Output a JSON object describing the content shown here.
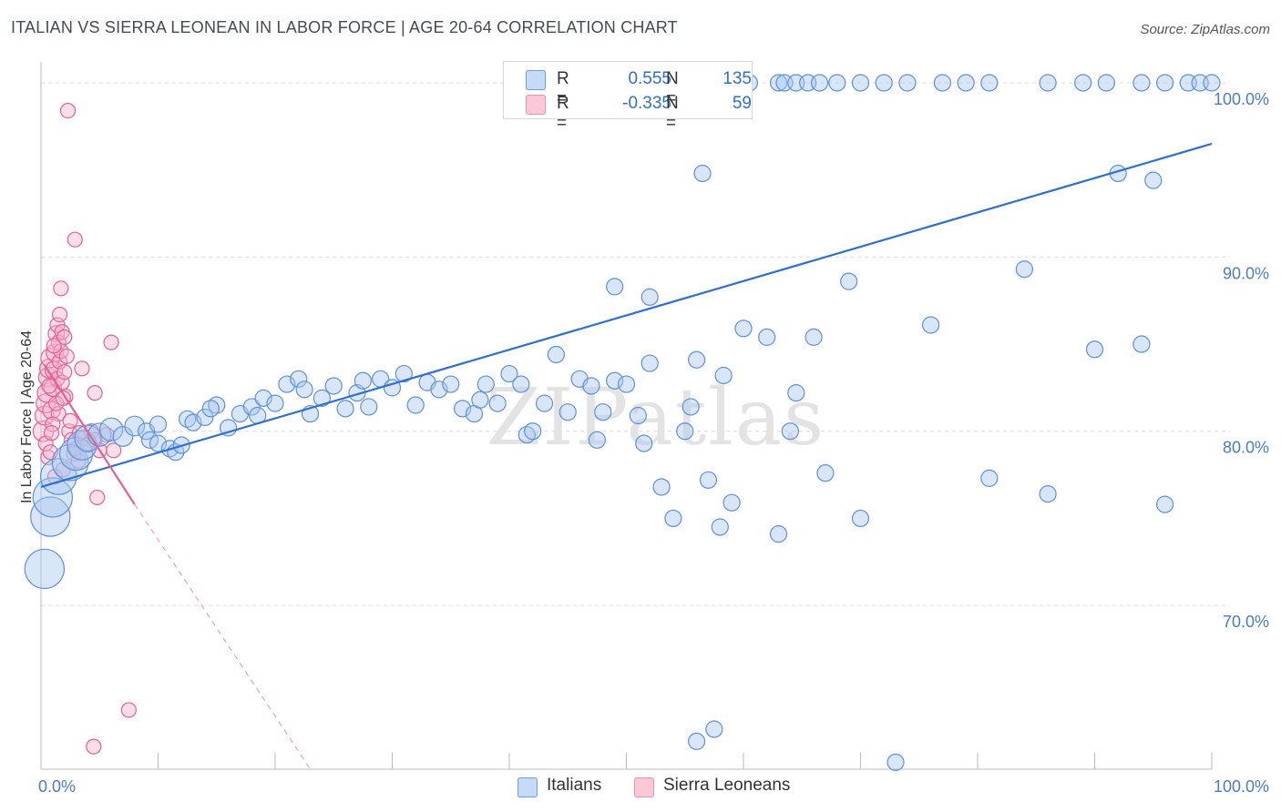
{
  "title": "ITALIAN VS SIERRA LEONEAN IN LABOR FORCE | AGE 20-64 CORRELATION CHART",
  "source": "Source: ZipAtlas.com",
  "watermark": "ZIPatlas",
  "colors": {
    "blue": "#2f6fd0",
    "blue_fill": "#a9c8f0",
    "pink": "#e86090",
    "pink_fill": "#f4b6cb",
    "grid": "#dcdcdc",
    "axis_text": "#4a7cc7"
  },
  "legend": {
    "rows": [
      {
        "r_label": "R =",
        "r_value": "0.555",
        "n_label": "N =",
        "n_value": "135"
      },
      {
        "r_label": "R =",
        "r_value": "-0.335",
        "n_label": "N =",
        "n_value": "59"
      }
    ]
  },
  "bottom_legend": {
    "italians": "Italians",
    "sierra": "Sierra Leoneans"
  },
  "chart_data": {
    "type": "scatter",
    "title": "ITALIAN VS SIERRA LEONEAN IN LABOR FORCE | AGE 20-64 CORRELATION CHART",
    "xlabel": "",
    "ylabel": "In Labor Force | Age 20-64",
    "xlim": [
      0,
      100
    ],
    "ylim": [
      60.6,
      101.2
    ],
    "x_tick_labels": [
      "0.0%",
      "100.0%"
    ],
    "y_ticks": [
      70,
      80,
      90,
      100
    ],
    "y_tick_labels": [
      "70.0%",
      "80.0%",
      "90.0%",
      "100.0%"
    ],
    "series": [
      {
        "name": "Italians",
        "color": "#2f6fd0",
        "r": 0.555,
        "n": 135,
        "trend": {
          "x": [
            0,
            100
          ],
          "y": [
            76.8,
            96.5
          ]
        },
        "points": [
          [
            0.3,
            72.1,
            2.4
          ],
          [
            0.8,
            75.1,
            2.4
          ],
          [
            1.0,
            76.2,
            2.4
          ],
          [
            1.5,
            77.4,
            2.2
          ],
          [
            2.5,
            78.2,
            2.2
          ],
          [
            3.0,
            78.7,
            2.0
          ],
          [
            3.5,
            79.2,
            1.8
          ],
          [
            4.0,
            79.6,
            1.6
          ],
          [
            5.0,
            79.8,
            1.4
          ],
          [
            6.0,
            80.1,
            1.4
          ],
          [
            7.0,
            79.7,
            1.2
          ],
          [
            8.0,
            80.3,
            1.2
          ],
          [
            9.0,
            80.0,
            1.0
          ],
          [
            10.0,
            80.4,
            1.0
          ],
          [
            9.3,
            79.5,
            1.0
          ],
          [
            10.0,
            79.3,
            1.0
          ],
          [
            11.0,
            79.0,
            1.0
          ],
          [
            11.5,
            78.8,
            1.0
          ],
          [
            12.0,
            79.2,
            1.0
          ],
          [
            12.5,
            80.7,
            1.0
          ],
          [
            13.0,
            80.5,
            1.0
          ],
          [
            14.0,
            80.8,
            1.0
          ],
          [
            15.0,
            81.5,
            1.0
          ],
          [
            14.5,
            81.3,
            1.0
          ],
          [
            16.0,
            80.2,
            1.0
          ],
          [
            17.0,
            81.0,
            1.0
          ],
          [
            18.0,
            81.4,
            1.0
          ],
          [
            18.5,
            80.9,
            1.0
          ],
          [
            19.0,
            81.9,
            1.0
          ],
          [
            20.0,
            81.6,
            1.0
          ],
          [
            21.0,
            82.7,
            1.0
          ],
          [
            22.0,
            83.0,
            1.0
          ],
          [
            22.5,
            82.4,
            1.0
          ],
          [
            23.0,
            81.0,
            1.0
          ],
          [
            24.0,
            81.9,
            1.0
          ],
          [
            25.0,
            82.6,
            1.0
          ],
          [
            26.0,
            81.3,
            1.0
          ],
          [
            27.0,
            82.2,
            1.0
          ],
          [
            27.5,
            82.9,
            1.0
          ],
          [
            28.0,
            81.4,
            1.0
          ],
          [
            29.0,
            83.0,
            1.0
          ],
          [
            30.0,
            82.5,
            1.0
          ],
          [
            31.0,
            83.3,
            1.0
          ],
          [
            32.0,
            81.5,
            1.0
          ],
          [
            33.0,
            82.8,
            1.0
          ],
          [
            34.0,
            82.4,
            1.0
          ],
          [
            35.0,
            82.7,
            1.0
          ],
          [
            36.0,
            81.3,
            1.0
          ],
          [
            37.0,
            81.0,
            1.0
          ],
          [
            37.5,
            81.8,
            1.0
          ],
          [
            38.0,
            82.7,
            1.0
          ],
          [
            39.0,
            81.6,
            1.0
          ],
          [
            40.0,
            83.3,
            1.0
          ],
          [
            41.0,
            82.7,
            1.0
          ],
          [
            41.5,
            79.8,
            1.0
          ],
          [
            42.0,
            80.0,
            1.0
          ],
          [
            43.0,
            81.6,
            1.0
          ],
          [
            44.0,
            84.4,
            1.0
          ],
          [
            45.0,
            81.1,
            1.0
          ],
          [
            46.0,
            83.0,
            1.0
          ],
          [
            47.0,
            82.6,
            1.0
          ],
          [
            47.5,
            79.5,
            1.0
          ],
          [
            48.0,
            81.1,
            1.0
          ],
          [
            49.0,
            82.9,
            1.0
          ],
          [
            50.0,
            82.7,
            1.0
          ],
          [
            51.0,
            80.9,
            1.0
          ],
          [
            51.5,
            79.3,
            1.0
          ],
          [
            52.0,
            83.9,
            1.0
          ],
          [
            53.0,
            76.8,
            1.0
          ],
          [
            54.0,
            75.0,
            1.0
          ],
          [
            55.0,
            80.0,
            1.0
          ],
          [
            55.5,
            81.4,
            1.0
          ],
          [
            56.0,
            84.1,
            1.0
          ],
          [
            57.0,
            77.2,
            1.0
          ],
          [
            58.0,
            74.5,
            1.0
          ],
          [
            58.3,
            83.2,
            1.0
          ],
          [
            59.0,
            75.9,
            1.0
          ],
          [
            60.0,
            85.9,
            1.0
          ],
          [
            62.0,
            85.4,
            1.0
          ],
          [
            63.0,
            74.1,
            1.0
          ],
          [
            64.0,
            80.0,
            1.0
          ],
          [
            64.5,
            82.2,
            1.0
          ],
          [
            66.0,
            85.4,
            1.0
          ],
          [
            67.0,
            77.6,
            1.0
          ],
          [
            70.0,
            75.0,
            1.0
          ],
          [
            49.0,
            88.3,
            1.0
          ],
          [
            52.0,
            87.7,
            1.0
          ],
          [
            56.0,
            62.2,
            1.0
          ],
          [
            57.5,
            62.9,
            1.0
          ],
          [
            69.0,
            88.6,
            1.0
          ],
          [
            73.0,
            61.0,
            1.0
          ],
          [
            76.0,
            86.1,
            1.0
          ],
          [
            81.0,
            77.3,
            1.0
          ],
          [
            84.0,
            89.3,
            1.0
          ],
          [
            86.0,
            76.4,
            1.0
          ],
          [
            90.0,
            84.7,
            1.0
          ],
          [
            94.0,
            85.0,
            1.0
          ],
          [
            96.0,
            75.8,
            1.0
          ],
          [
            56.5,
            94.8,
            1.0
          ],
          [
            92.0,
            94.8,
            1.0
          ],
          [
            95.0,
            94.4,
            1.0
          ],
          [
            48.0,
            100.0,
            1.0
          ],
          [
            50.0,
            100.0,
            1.0
          ],
          [
            53.0,
            100.0,
            1.0
          ],
          [
            55.0,
            100.0,
            1.0
          ],
          [
            57.0,
            100.0,
            1.0
          ],
          [
            58.0,
            100.0,
            1.0
          ],
          [
            59.0,
            100.0,
            1.0
          ],
          [
            60.5,
            100.0,
            1.0
          ],
          [
            63.0,
            100.0,
            1.0
          ],
          [
            63.5,
            100.0,
            1.0
          ],
          [
            64.5,
            100.0,
            1.0
          ],
          [
            65.5,
            100.0,
            1.0
          ],
          [
            66.5,
            100.0,
            1.0
          ],
          [
            68.0,
            100.0,
            1.0
          ],
          [
            70.0,
            100.0,
            1.0
          ],
          [
            72.0,
            100.0,
            1.0
          ],
          [
            74.0,
            100.0,
            1.0
          ],
          [
            77.0,
            100.0,
            1.0
          ],
          [
            79.0,
            100.0,
            1.0
          ],
          [
            81.0,
            100.0,
            1.0
          ],
          [
            86.0,
            100.0,
            1.0
          ],
          [
            89.0,
            100.0,
            1.0
          ],
          [
            91.0,
            100.0,
            1.0
          ],
          [
            94.0,
            100.0,
            1.0
          ],
          [
            96.0,
            100.0,
            1.0
          ],
          [
            98.0,
            100.0,
            1.0
          ],
          [
            99.0,
            100.0,
            1.0
          ],
          [
            100.0,
            100.0,
            1.0
          ]
        ]
      },
      {
        "name": "Sierra Leoneans",
        "color": "#e86090",
        "r": -0.335,
        "n": 59,
        "trend": {
          "x": [
            0.3,
            8.0
          ],
          "y": [
            83.8,
            75.8
          ]
        },
        "trend_extrapolated": {
          "x": [
            8.0,
            23.0
          ],
          "y": [
            75.8,
            60.6
          ]
        },
        "points": [
          [
            0.2,
            80.0,
            1.4
          ],
          [
            0.3,
            80.9,
            1.3
          ],
          [
            0.4,
            81.6,
            1.3
          ],
          [
            0.5,
            82.2,
            1.3
          ],
          [
            0.6,
            83.1,
            1.3
          ],
          [
            0.7,
            83.6,
            1.3
          ],
          [
            0.8,
            84.2,
            1.3
          ],
          [
            0.9,
            81.2,
            1.2
          ],
          [
            1.0,
            82.5,
            1.2
          ],
          [
            1.1,
            83.5,
            1.2
          ],
          [
            1.2,
            84.5,
            1.2
          ],
          [
            1.3,
            85.6,
            1.1
          ],
          [
            1.4,
            86.1,
            1.0
          ],
          [
            1.5,
            85.1,
            1.0
          ],
          [
            1.6,
            84.0,
            1.0
          ],
          [
            1.7,
            84.6,
            1.0
          ],
          [
            1.8,
            85.7,
            1.0
          ],
          [
            1.6,
            86.7,
            1.0
          ],
          [
            1.7,
            88.2,
            1.0
          ],
          [
            1.4,
            83.0,
            1.0
          ],
          [
            1.8,
            82.8,
            1.0
          ],
          [
            2.0,
            83.4,
            1.0
          ],
          [
            2.2,
            84.3,
            1.0
          ],
          [
            2.0,
            85.4,
            1.0
          ],
          [
            1.5,
            81.0,
            1.0
          ],
          [
            2.4,
            80.0,
            1.0
          ],
          [
            2.6,
            79.5,
            1.0
          ],
          [
            2.8,
            78.7,
            1.0
          ],
          [
            3.0,
            79.0,
            1.0
          ],
          [
            3.2,
            78.3,
            1.0
          ],
          [
            3.5,
            83.6,
            1.0
          ],
          [
            3.7,
            79.6,
            1.0
          ],
          [
            4.0,
            79.2,
            1.0
          ],
          [
            4.3,
            80.0,
            1.0
          ],
          [
            4.6,
            79.5,
            1.0
          ],
          [
            4.6,
            82.2,
            1.0
          ],
          [
            4.8,
            76.2,
            1.0
          ],
          [
            5.0,
            78.9,
            1.0
          ],
          [
            5.6,
            79.8,
            1.0
          ],
          [
            6.2,
            78.9,
            1.0
          ],
          [
            6.0,
            85.1,
            1.0
          ],
          [
            1.0,
            80.4,
            1.0
          ],
          [
            0.6,
            78.5,
            1.0
          ],
          [
            0.4,
            79.3,
            1.0
          ],
          [
            1.2,
            77.4,
            1.0
          ],
          [
            0.8,
            78.8,
            1.0
          ],
          [
            2.9,
            91.0,
            1.0
          ],
          [
            2.3,
            98.4,
            1.0
          ],
          [
            7.5,
            64.0,
            1.0
          ],
          [
            4.5,
            61.9,
            1.0
          ],
          [
            1.9,
            77.8,
            1.0
          ],
          [
            2.1,
            82.0,
            1.0
          ],
          [
            0.9,
            79.9,
            1.0
          ],
          [
            1.3,
            81.6,
            1.0
          ],
          [
            1.1,
            84.9,
            1.0
          ],
          [
            0.7,
            82.6,
            1.0
          ],
          [
            2.5,
            80.6,
            1.0
          ],
          [
            3.3,
            79.9,
            1.0
          ],
          [
            1.9,
            81.9,
            1.0
          ]
        ]
      }
    ]
  }
}
